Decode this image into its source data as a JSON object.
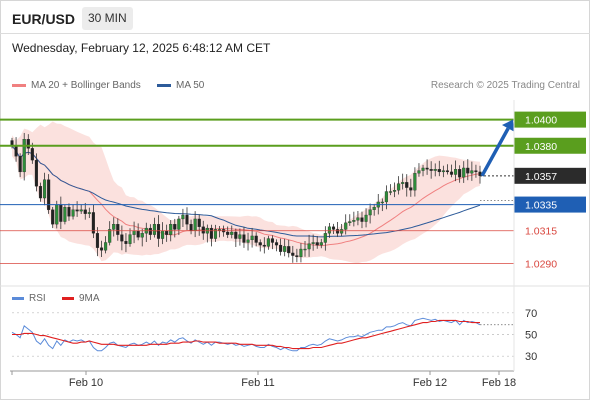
{
  "header": {
    "pair": "EUR/USD",
    "timeframe": "30 MIN",
    "timestamp": "Wednesday, February 12, 2025 6:48:12 AM CET"
  },
  "legend": {
    "ma20_label": "MA 20 + Bollinger Bands",
    "ma20_color": "#f08080",
    "ma50_label": "MA 50",
    "ma50_color": "#2d5b9a",
    "copyright": "Research © 2025 Trading Central"
  },
  "rsi_legend": {
    "rsi_label": "RSI",
    "rsi_color": "#5b8bd9",
    "ma9_label": "9MA",
    "ma9_color": "#e02020"
  },
  "chart_data": [
    {
      "type": "candlestick",
      "title": "",
      "ylim": [
        1.0275,
        1.0415
      ],
      "x_ticks": [
        "Feb 10",
        "Feb 11",
        "Feb 12",
        "Feb 18"
      ],
      "levels": [
        {
          "value": 1.04,
          "label": "1.0400",
          "style": "resistance",
          "color": "#5a9e1e"
        },
        {
          "value": 1.038,
          "label": "1.0380",
          "style": "resistance",
          "color": "#5a9e1e"
        },
        {
          "value": 1.0357,
          "label": "1.0357",
          "style": "last-price",
          "color": "#333333"
        },
        {
          "value": 1.0335,
          "label": "1.0335",
          "style": "pivot",
          "color": "#1f5fb4"
        },
        {
          "value": 1.0315,
          "label": "1.0315",
          "style": "support",
          "color": "#d9473f"
        },
        {
          "value": 1.029,
          "label": "1.0290",
          "style": "support",
          "color": "#d9473f"
        }
      ],
      "forecast_arrow": {
        "from": 1.0357,
        "to": 1.04,
        "color": "#1f5fb4"
      },
      "closes": [
        1.038,
        1.0372,
        1.036,
        1.0385,
        1.0378,
        1.0369,
        1.0349,
        1.034,
        1.0354,
        1.0331,
        1.032,
        1.0335,
        1.0322,
        1.0333,
        1.0326,
        1.0331,
        1.033,
        1.0331,
        1.0328,
        1.0329,
        1.0313,
        1.0302,
        1.03,
        1.0306,
        1.0316,
        1.032,
        1.0312,
        1.0307,
        1.0305,
        1.0312,
        1.0315,
        1.031,
        1.0313,
        1.0317,
        1.0312,
        1.032,
        1.0309,
        1.0315,
        1.0312,
        1.032,
        1.0316,
        1.0324,
        1.0327,
        1.032,
        1.0315,
        1.0324,
        1.0318,
        1.0313,
        1.0317,
        1.0309,
        1.0316,
        1.0316,
        1.0314,
        1.0312,
        1.0314,
        1.0309,
        1.0312,
        1.0306,
        1.0308,
        1.0311,
        1.0306,
        1.0304,
        1.0303,
        1.0309,
        1.0306,
        1.0304,
        1.0299,
        1.0303,
        1.0298,
        1.0296,
        1.0295,
        1.0301,
        1.0301,
        1.0305,
        1.0306,
        1.0304,
        1.0306,
        1.0313,
        1.0318,
        1.0316,
        1.0313,
        1.0316,
        1.0321,
        1.0322,
        1.0323,
        1.0325,
        1.0322,
        1.0327,
        1.0331,
        1.0333,
        1.0337,
        1.0337,
        1.0345,
        1.0345,
        1.0346,
        1.0351,
        1.0352,
        1.0348,
        1.0346,
        1.0359,
        1.0361,
        1.0363,
        1.0362,
        1.0361,
        1.0362,
        1.036,
        1.0361,
        1.036,
        1.0358,
        1.0362,
        1.0356,
        1.0363,
        1.0359,
        1.0361,
        1.036,
        1.0357
      ]
    },
    {
      "type": "line",
      "title": "RSI",
      "ylim": [
        20,
        80
      ],
      "y_ticks": [
        70,
        50,
        30
      ],
      "series": [
        {
          "name": "RSI",
          "values": [
            52,
            50,
            47,
            58,
            55,
            52,
            44,
            41,
            46,
            40,
            37,
            44,
            40,
            45,
            43,
            45,
            44,
            45,
            43,
            44,
            38,
            35,
            35,
            38,
            42,
            43,
            40,
            39,
            38,
            41,
            42,
            40,
            41,
            43,
            41,
            44,
            40,
            43,
            42,
            45,
            43,
            46,
            47,
            44,
            42,
            45,
            43,
            41,
            43,
            40,
            43,
            43,
            42,
            41,
            42,
            40,
            41,
            39,
            40,
            41,
            39,
            38,
            38,
            41,
            39,
            38,
            36,
            38,
            36,
            35,
            35,
            38,
            38,
            40,
            41,
            40,
            41,
            44,
            46,
            45,
            44,
            45,
            47,
            48,
            48,
            49,
            48,
            50,
            52,
            53,
            54,
            54,
            57,
            57,
            58,
            60,
            61,
            59,
            58,
            63,
            64,
            65,
            64,
            63,
            64,
            62,
            63,
            62,
            61,
            63,
            59,
            63,
            61,
            62,
            61,
            59
          ]
        },
        {
          "name": "9MA",
          "values": [
            50,
            50,
            50,
            51,
            51,
            51,
            50,
            49,
            49,
            48,
            47,
            46,
            45,
            44,
            43,
            42,
            42,
            43,
            43,
            44,
            43,
            42,
            41,
            41,
            41,
            41,
            40,
            40,
            40,
            40,
            40,
            40,
            40,
            40,
            41,
            41,
            41,
            41,
            41,
            42,
            42,
            42,
            43,
            43,
            43,
            44,
            44,
            43,
            43,
            43,
            43,
            42,
            42,
            42,
            42,
            42,
            41,
            41,
            41,
            41,
            40,
            40,
            40,
            40,
            40,
            39,
            39,
            38,
            38,
            37,
            37,
            37,
            37,
            37,
            38,
            38,
            38,
            39,
            40,
            41,
            42,
            42,
            43,
            44,
            45,
            46,
            47,
            47,
            48,
            49,
            50,
            51,
            52,
            53,
            54,
            55,
            56,
            57,
            58,
            59,
            60,
            61,
            61,
            62,
            62,
            63,
            63,
            63,
            63,
            63,
            62,
            62,
            62,
            61,
            61,
            61
          ]
        }
      ]
    }
  ]
}
